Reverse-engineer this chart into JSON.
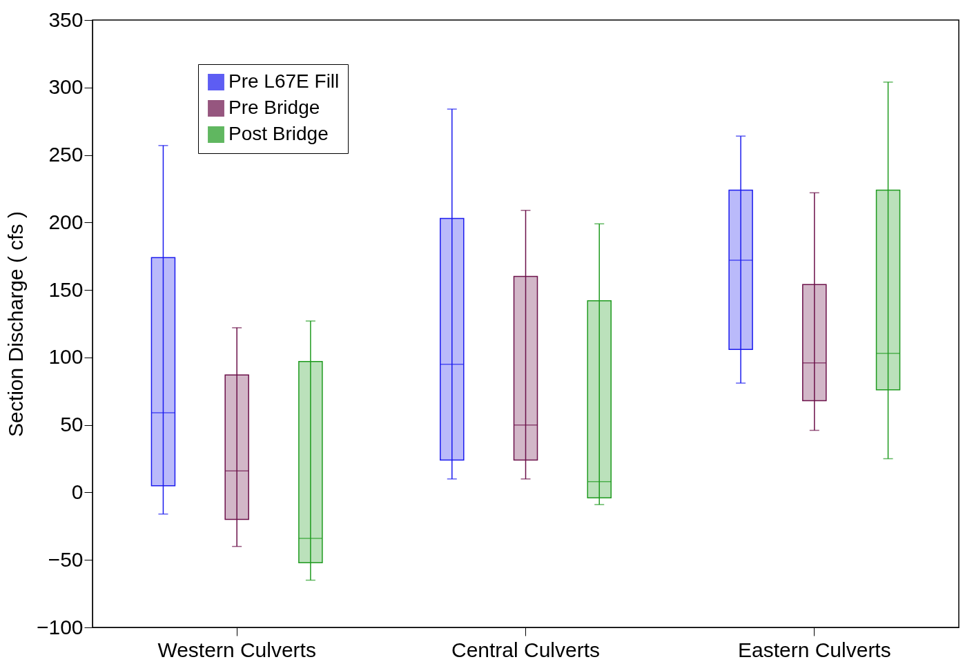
{
  "chart_data": {
    "type": "box",
    "ylabel": "Section Discharge ( cfs )",
    "categories": [
      "Western Culverts",
      "Central Culverts",
      "Eastern Culverts"
    ],
    "ylim": [
      -100,
      350
    ],
    "yticks": [
      -100,
      -50,
      0,
      50,
      100,
      150,
      200,
      250,
      300,
      350
    ],
    "grid": false,
    "legend": "top left",
    "series": [
      {
        "name": "Pre L67E Fill",
        "color": "#1a1aee",
        "boxes": [
          {
            "low": -16,
            "q1": 5,
            "median": 59,
            "q3": 174,
            "high": 257
          },
          {
            "low": 10,
            "q1": 24,
            "median": 95,
            "q3": 203,
            "high": 284
          },
          {
            "low": 81,
            "q1": 106,
            "median": 172,
            "q3": 224,
            "high": 264
          }
        ]
      },
      {
        "name": "Pre Bridge",
        "color": "#6b1049",
        "boxes": [
          {
            "low": -40,
            "q1": -20,
            "median": 16,
            "q3": 87,
            "high": 122
          },
          {
            "low": 10,
            "q1": 24,
            "median": 50,
            "q3": 160,
            "high": 209
          },
          {
            "low": 46,
            "q1": 68,
            "median": 96,
            "q3": 154,
            "high": 222
          }
        ]
      },
      {
        "name": "Post Bridge",
        "color": "#1e9a1e",
        "boxes": [
          {
            "low": -65,
            "q1": -52,
            "median": -34,
            "q3": 97,
            "high": 127
          },
          {
            "low": -9,
            "q1": -4,
            "median": 8,
            "q3": 142,
            "high": 199
          },
          {
            "low": 25,
            "q1": 76,
            "median": 103,
            "q3": 224,
            "high": 304
          }
        ]
      }
    ]
  }
}
